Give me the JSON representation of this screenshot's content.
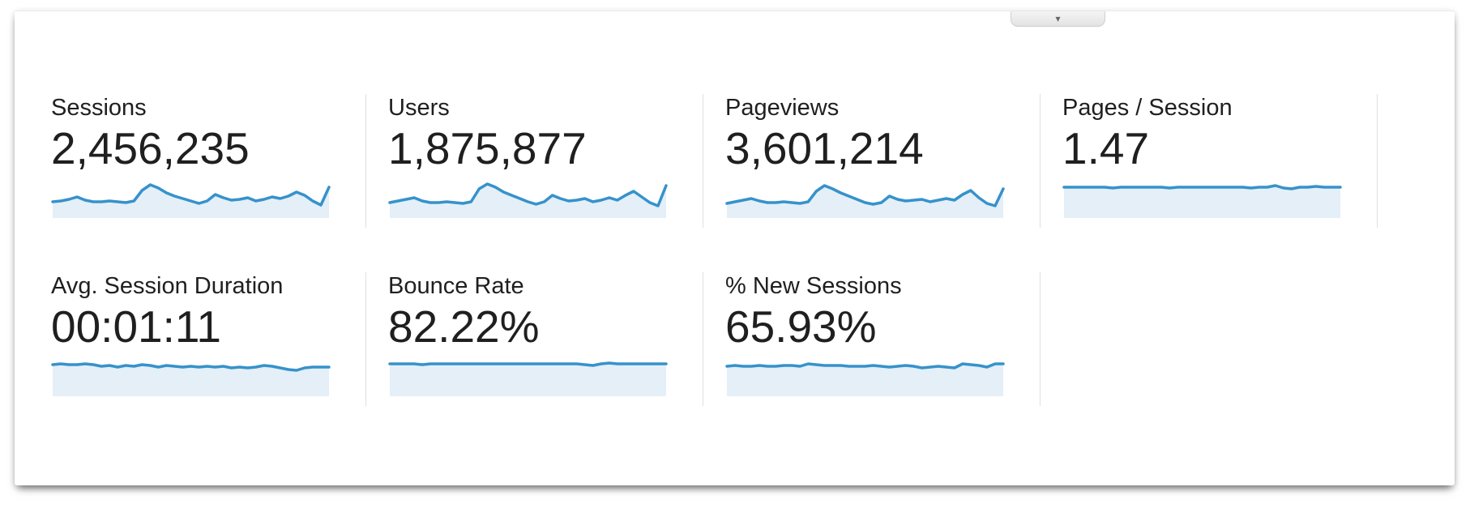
{
  "colors": {
    "sparkline_stroke": "#3692cb",
    "sparkline_fill": "#e4eff8",
    "divider": "#e0e0e0",
    "text": "#1f1f1f",
    "card_background": "#ffffff"
  },
  "collapse_button": {
    "caret": "▾"
  },
  "metrics": [
    {
      "label": "Sessions",
      "value": "2,456,235"
    },
    {
      "label": "Users",
      "value": "1,875,877"
    },
    {
      "label": "Pageviews",
      "value": "3,601,214"
    },
    {
      "label": "Pages / Session",
      "value": "1.47"
    },
    {
      "label": "Avg. Session Duration",
      "value": "00:01:11"
    },
    {
      "label": "Bounce Rate",
      "value": "82.22%"
    },
    {
      "label": "% New Sessions",
      "value": "65.93%"
    }
  ],
  "chart_data": [
    {
      "type": "line",
      "name": "Sessions",
      "headline_value": "2,456,235",
      "values": [
        20,
        21,
        23,
        26,
        22,
        20,
        20,
        21,
        20,
        19,
        21,
        34,
        41,
        37,
        31,
        27,
        24,
        21,
        18,
        21,
        29,
        25,
        22,
        23,
        25,
        21,
        23,
        26,
        24,
        27,
        32,
        28,
        21,
        16,
        38
      ],
      "note": "unlabeled sparkline; values are relative heights",
      "ylim": [
        0,
        47
      ],
      "grid": false,
      "legend": false
    },
    {
      "type": "line",
      "name": "Users",
      "headline_value": "1,875,877",
      "values": [
        19,
        21,
        23,
        25,
        21,
        19,
        19,
        20,
        19,
        18,
        20,
        36,
        42,
        38,
        32,
        28,
        24,
        20,
        17,
        20,
        28,
        24,
        21,
        22,
        24,
        20,
        22,
        25,
        22,
        28,
        33,
        26,
        19,
        15,
        40
      ],
      "note": "unlabeled sparkline; values are relative heights",
      "ylim": [
        0,
        47
      ],
      "grid": false,
      "legend": false
    },
    {
      "type": "line",
      "name": "Pageviews",
      "headline_value": "3,601,214",
      "values": [
        18,
        20,
        22,
        24,
        21,
        19,
        19,
        20,
        19,
        18,
        20,
        33,
        40,
        36,
        31,
        27,
        23,
        19,
        17,
        19,
        27,
        23,
        21,
        22,
        23,
        20,
        22,
        24,
        22,
        29,
        34,
        25,
        18,
        15,
        36
      ],
      "note": "unlabeled sparkline; values are relative heights",
      "ylim": [
        0,
        47
      ],
      "grid": false,
      "legend": false
    },
    {
      "type": "line",
      "name": "Pages / Session",
      "headline_value": "1.47",
      "values": [
        38,
        38,
        38,
        38,
        38,
        38,
        37,
        38,
        38,
        38,
        38,
        38,
        38,
        37,
        38,
        38,
        38,
        38,
        38,
        38,
        38,
        38,
        38,
        37,
        38,
        38,
        40,
        37,
        36,
        38,
        38,
        39,
        38,
        38,
        38
      ],
      "note": "unlabeled sparkline; values are relative heights",
      "ylim": [
        0,
        47
      ],
      "grid": false,
      "legend": false
    },
    {
      "type": "line",
      "name": "Avg. Session Duration",
      "headline_value": "00:01:11",
      "values": [
        39,
        40,
        39,
        39,
        40,
        39,
        37,
        38,
        36,
        38,
        37,
        39,
        38,
        36,
        38,
        37,
        36,
        37,
        36,
        37,
        36,
        37,
        35,
        36,
        35,
        36,
        38,
        37,
        35,
        33,
        32,
        35,
        36,
        36,
        36
      ],
      "note": "unlabeled sparkline; values are relative heights",
      "ylim": [
        0,
        47
      ],
      "grid": false,
      "legend": false
    },
    {
      "type": "line",
      "name": "Bounce Rate",
      "headline_value": "82.22%",
      "values": [
        40,
        40,
        40,
        40,
        39,
        40,
        40,
        40,
        40,
        40,
        40,
        40,
        40,
        40,
        40,
        40,
        40,
        40,
        40,
        40,
        40,
        40,
        40,
        40,
        39,
        38,
        40,
        41,
        40,
        40,
        40,
        40,
        40,
        40,
        40
      ],
      "note": "unlabeled sparkline; values are relative heights",
      "ylim": [
        0,
        47
      ],
      "grid": false,
      "legend": false
    },
    {
      "type": "line",
      "name": "% New Sessions",
      "headline_value": "65.93%",
      "values": [
        37,
        38,
        37,
        37,
        38,
        37,
        37,
        38,
        38,
        37,
        40,
        39,
        38,
        38,
        38,
        37,
        37,
        37,
        38,
        37,
        36,
        37,
        38,
        37,
        35,
        36,
        37,
        36,
        35,
        40,
        39,
        38,
        36,
        40,
        40
      ],
      "note": "unlabeled sparkline; values are relative heights",
      "ylim": [
        0,
        47
      ],
      "grid": false,
      "legend": false
    }
  ]
}
